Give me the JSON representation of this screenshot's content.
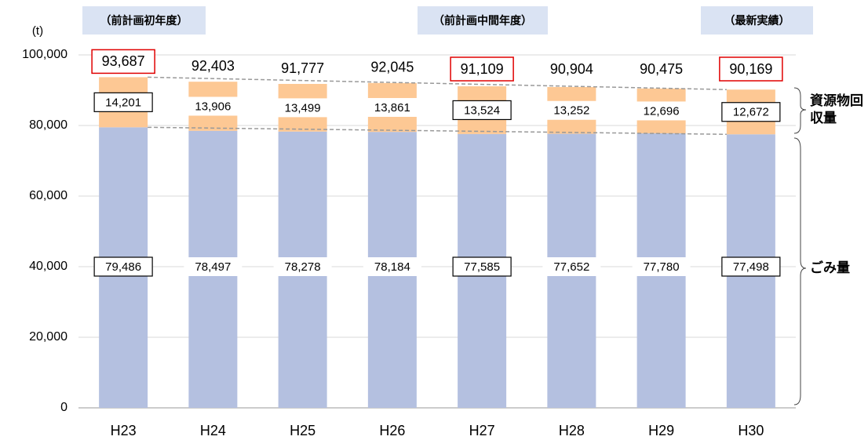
{
  "chart_data": {
    "type": "stacked_bar",
    "y_label": "(t)",
    "categories": [
      "H23",
      "H24",
      "H25",
      "H26",
      "H27",
      "H28",
      "H29",
      "H30"
    ],
    "series": [
      {
        "name": "ごみ量",
        "color": "#b4c0e0",
        "values": [
          79486,
          78497,
          78278,
          78184,
          77585,
          77652,
          77780,
          77498
        ],
        "value_labels": [
          "79,486",
          "78,497",
          "78,278",
          "78,184",
          "77,585",
          "77,652",
          "77,780",
          "77,498"
        ]
      },
      {
        "name": "資源物回収量",
        "color": "#fdc894",
        "values": [
          14201,
          13906,
          13499,
          13861,
          13524,
          13252,
          12696,
          12672
        ],
        "value_labels": [
          "14,201",
          "13,906",
          "13,499",
          "13,861",
          "13,524",
          "13,252",
          "12,696",
          "12,672"
        ]
      }
    ],
    "totals": {
      "values": [
        93687,
        92403,
        91777,
        92045,
        91109,
        90904,
        90475,
        90169
      ],
      "value_labels": [
        "93,687",
        "92,403",
        "91,777",
        "92,045",
        "91,109",
        "90,904",
        "90,475",
        "90,169"
      ]
    },
    "annotations": [
      "（前計画初年度）",
      "（前計画中間年度）",
      "（最新実績）"
    ],
    "highlighted": [
      0,
      4,
      7
    ],
    "ylim": [
      0,
      100000
    ],
    "yticks": [
      0,
      {
        "value": 20000,
        "label": "20,000"
      },
      {
        "value": 40000,
        "label": "40,000"
      },
      {
        "value": 60000,
        "label": "60,000"
      },
      {
        "value": 80000,
        "label": "80,000"
      },
      {
        "value": 100000,
        "label": "100,000"
      }
    ],
    "grid": true
  }
}
